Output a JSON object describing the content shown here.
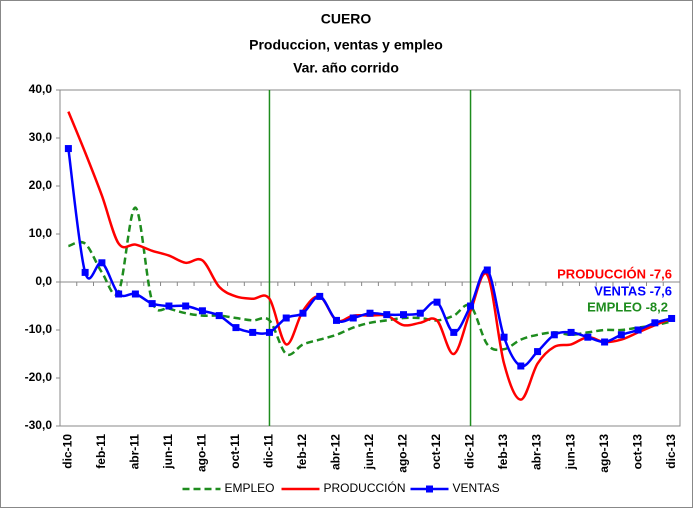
{
  "chart_data": {
    "type": "line",
    "title": "CUERO",
    "subtitle": [
      "Produccion, ventas y empleo",
      "Var. año corrido"
    ],
    "categories": [
      "dic-10",
      null,
      "feb-11",
      null,
      "abr-11",
      null,
      "jun-11",
      null,
      "ago-11",
      null,
      "oct-11",
      null,
      "dic-11",
      null,
      "feb-12",
      null,
      "abr-12",
      null,
      "jun-12",
      null,
      "ago-12",
      null,
      "oct-12",
      null,
      "dic-12",
      null,
      "feb-13",
      null,
      "abr-13",
      null,
      "jun-13",
      null,
      "ago-13",
      null,
      "oct-13",
      null,
      "dic-13"
    ],
    "series": [
      {
        "name": "EMPLEO",
        "color": "#1e8c1e",
        "style": "dashed",
        "marker": null,
        "values": [
          7.5,
          8,
          2,
          -2,
          15.5,
          -4,
          -5.5,
          -6.5,
          -7,
          -7,
          -7.5,
          -8,
          -8,
          -15,
          -13,
          -12,
          -11,
          -9.5,
          -8.5,
          -8,
          -7.5,
          -7.5,
          -8,
          -7,
          -5,
          -13,
          -14,
          -12,
          -11,
          -10.5,
          -11,
          -10.5,
          -10,
          -10,
          -9.5,
          -9,
          -8.2
        ]
      },
      {
        "name": "PRODUCCIÓN",
        "color": "#ff0000",
        "style": "solid",
        "marker": null,
        "values": [
          35.5,
          27,
          18,
          8,
          7.8,
          6.5,
          5.5,
          4,
          4.5,
          -1,
          -3,
          -3.5,
          -3.5,
          -13,
          -6,
          -3,
          -8,
          -7,
          -7,
          -7,
          -9,
          -8.5,
          -8,
          -15,
          -6,
          1.5,
          -17,
          -24.5,
          -17,
          -13.5,
          -13,
          -11.5,
          -12.5,
          -12,
          -10.5,
          -9,
          -7.6
        ]
      },
      {
        "name": "VENTAS",
        "color": "#0000ff",
        "style": "solid",
        "marker": "square",
        "values": [
          27.8,
          2,
          4,
          -2.5,
          -2.5,
          -4.5,
          -5,
          -5,
          -6,
          -7,
          -9.5,
          -10.5,
          -10.5,
          -7.5,
          -6.5,
          -3,
          -8,
          -7.5,
          -6.5,
          -6.8,
          -6.8,
          -6.5,
          -4.2,
          -10.5,
          -5,
          2.5,
          -11.5,
          -17.5,
          -14.5,
          -11,
          -10.5,
          -11.5,
          -12.5,
          -11,
          -10,
          -8.5,
          -7.6
        ]
      }
    ],
    "ylim": [
      -30,
      40
    ],
    "yticks": [
      {
        "value": -30,
        "label": "-30,0"
      },
      {
        "value": -20,
        "label": "-20,0"
      },
      {
        "value": -10,
        "label": "-10,0"
      },
      {
        "value": 0,
        "label": "0,0"
      },
      {
        "value": 10,
        "label": "10,0"
      },
      {
        "value": 20,
        "label": "20,0"
      },
      {
        "value": 30,
        "label": "30,0"
      },
      {
        "value": 40,
        "label": "40,0"
      }
    ],
    "grid": false,
    "vertical_lines_at": [
      "dic-11",
      "dic-12"
    ],
    "vertical_line_color": "#1e8c1e",
    "legend": "bottom",
    "annotations": [
      {
        "text": "PRODUCCIÓN -7,6",
        "color": "#ff0000"
      },
      {
        "text": "VENTAS -7,6",
        "color": "#0000ff"
      },
      {
        "text": "EMPLEO -8,2",
        "color": "#1e8c1e"
      }
    ]
  }
}
